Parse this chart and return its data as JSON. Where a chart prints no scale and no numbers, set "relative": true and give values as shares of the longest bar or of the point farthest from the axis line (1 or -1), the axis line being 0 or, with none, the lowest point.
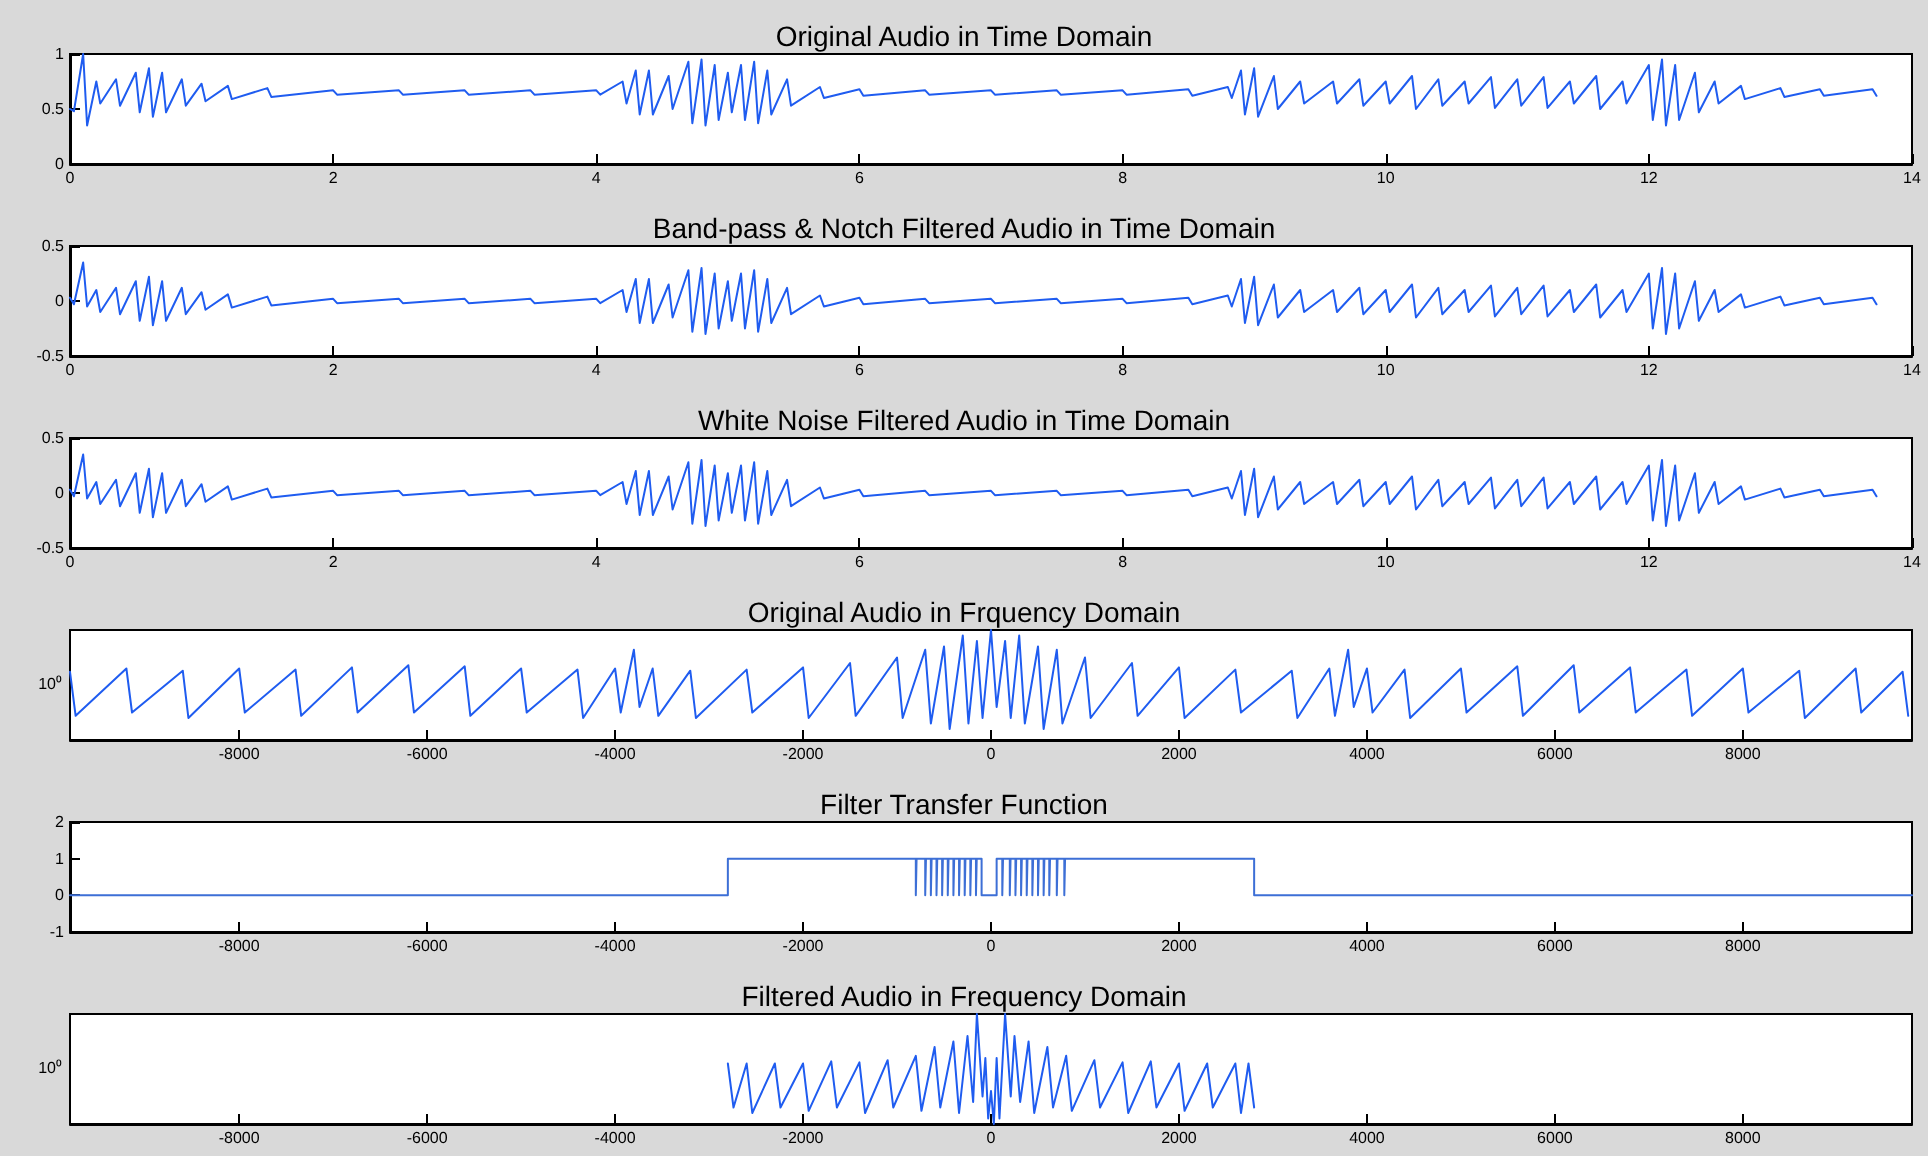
{
  "chart_data": [
    {
      "type": "line",
      "title": "Original Audio in Time Domain",
      "color": "#1f5cf0",
      "xlim": [
        0,
        14
      ],
      "xticks": [
        0,
        2,
        4,
        6,
        8,
        10,
        12,
        14
      ],
      "ylim": [
        0,
        1
      ],
      "yticks": [
        0,
        0.5,
        1
      ],
      "x": [
        0,
        0.03,
        0.1,
        0.13,
        0.2,
        0.23,
        0.35,
        0.38,
        0.5,
        0.53,
        0.6,
        0.63,
        0.7,
        0.73,
        0.85,
        0.88,
        1,
        1.03,
        1.2,
        1.23,
        1.5,
        1.53,
        2,
        2.03,
        2.5,
        2.53,
        3,
        3.03,
        3.5,
        3.53,
        4,
        4.03,
        4.2,
        4.23,
        4.3,
        4.33,
        4.4,
        4.43,
        4.55,
        4.58,
        4.7,
        4.73,
        4.8,
        4.83,
        4.9,
        4.93,
        5,
        5.03,
        5.1,
        5.13,
        5.2,
        5.23,
        5.3,
        5.33,
        5.45,
        5.48,
        5.7,
        5.73,
        6,
        6.03,
        6.5,
        6.53,
        7,
        7.03,
        7.5,
        7.53,
        8,
        8.03,
        8.5,
        8.53,
        8.8,
        8.83,
        8.9,
        8.93,
        9,
        9.03,
        9.15,
        9.18,
        9.35,
        9.38,
        9.6,
        9.63,
        9.8,
        9.83,
        10,
        10.03,
        10.2,
        10.23,
        10.4,
        10.43,
        10.6,
        10.63,
        10.8,
        10.83,
        11,
        11.03,
        11.2,
        11.23,
        11.4,
        11.43,
        11.6,
        11.63,
        11.8,
        11.83,
        12,
        12.03,
        12.1,
        12.13,
        12.2,
        12.23,
        12.35,
        12.38,
        12.5,
        12.53,
        12.7,
        12.73,
        13,
        13.03,
        13.3,
        13.33,
        13.7,
        13.73
      ],
      "values": [
        0.5,
        0.48,
        1,
        0.35,
        0.75,
        0.55,
        0.77,
        0.53,
        0.83,
        0.47,
        0.87,
        0.43,
        0.83,
        0.47,
        0.77,
        0.53,
        0.73,
        0.57,
        0.71,
        0.59,
        0.69,
        0.61,
        0.67,
        0.63,
        0.67,
        0.63,
        0.67,
        0.63,
        0.67,
        0.63,
        0.67,
        0.63,
        0.75,
        0.55,
        0.85,
        0.45,
        0.85,
        0.45,
        0.8,
        0.5,
        0.93,
        0.37,
        0.95,
        0.35,
        0.9,
        0.4,
        0.83,
        0.47,
        0.9,
        0.4,
        0.93,
        0.37,
        0.85,
        0.45,
        0.77,
        0.53,
        0.7,
        0.6,
        0.68,
        0.62,
        0.67,
        0.63,
        0.67,
        0.63,
        0.67,
        0.63,
        0.67,
        0.63,
        0.68,
        0.62,
        0.7,
        0.6,
        0.85,
        0.45,
        0.87,
        0.43,
        0.8,
        0.5,
        0.75,
        0.55,
        0.75,
        0.55,
        0.77,
        0.53,
        0.75,
        0.55,
        0.8,
        0.5,
        0.77,
        0.53,
        0.75,
        0.55,
        0.79,
        0.51,
        0.77,
        0.53,
        0.79,
        0.51,
        0.75,
        0.55,
        0.8,
        0.5,
        0.75,
        0.55,
        0.9,
        0.4,
        0.95,
        0.35,
        0.9,
        0.4,
        0.83,
        0.47,
        0.75,
        0.55,
        0.71,
        0.59,
        0.69,
        0.61,
        0.68,
        0.62,
        0.68,
        0.62
      ]
    },
    {
      "type": "line",
      "title": "Band-pass & Notch Filtered Audio in Time Domain",
      "color": "#1f5cf0",
      "xlim": [
        0,
        14
      ],
      "xticks": [
        0,
        2,
        4,
        6,
        8,
        10,
        12,
        14
      ],
      "ylim": [
        -0.5,
        0.5
      ],
      "yticks": [
        -0.5,
        0,
        0.5
      ],
      "x": [
        0,
        0.03,
        0.1,
        0.13,
        0.2,
        0.23,
        0.35,
        0.38,
        0.5,
        0.53,
        0.6,
        0.63,
        0.7,
        0.73,
        0.85,
        0.88,
        1,
        1.03,
        1.2,
        1.23,
        1.5,
        1.53,
        2,
        2.03,
        2.5,
        2.53,
        3,
        3.03,
        3.5,
        3.53,
        4,
        4.03,
        4.2,
        4.23,
        4.3,
        4.33,
        4.4,
        4.43,
        4.55,
        4.58,
        4.7,
        4.73,
        4.8,
        4.83,
        4.9,
        4.93,
        5,
        5.03,
        5.1,
        5.13,
        5.2,
        5.23,
        5.3,
        5.33,
        5.45,
        5.48,
        5.7,
        5.73,
        6,
        6.03,
        6.5,
        6.53,
        7,
        7.03,
        7.5,
        7.53,
        8,
        8.03,
        8.5,
        8.53,
        8.8,
        8.83,
        8.9,
        8.93,
        9,
        9.03,
        9.15,
        9.18,
        9.35,
        9.38,
        9.6,
        9.63,
        9.8,
        9.83,
        10,
        10.03,
        10.2,
        10.23,
        10.4,
        10.43,
        10.6,
        10.63,
        10.8,
        10.83,
        11,
        11.03,
        11.2,
        11.23,
        11.4,
        11.43,
        11.6,
        11.63,
        11.8,
        11.83,
        12,
        12.03,
        12.1,
        12.13,
        12.2,
        12.23,
        12.35,
        12.38,
        12.5,
        12.53,
        12.7,
        12.73,
        13,
        13.03,
        13.3,
        13.33,
        13.7,
        13.73
      ],
      "values": [
        0.03,
        -0.03,
        0.35,
        -0.05,
        0.1,
        -0.1,
        0.12,
        -0.12,
        0.18,
        -0.18,
        0.22,
        -0.22,
        0.18,
        -0.18,
        0.12,
        -0.12,
        0.08,
        -0.08,
        0.06,
        -0.06,
        0.04,
        -0.04,
        0.02,
        -0.02,
        0.02,
        -0.02,
        0.02,
        -0.02,
        0.02,
        -0.02,
        0.02,
        -0.02,
        0.1,
        -0.1,
        0.2,
        -0.2,
        0.2,
        -0.2,
        0.15,
        -0.15,
        0.28,
        -0.28,
        0.3,
        -0.3,
        0.25,
        -0.25,
        0.18,
        -0.18,
        0.25,
        -0.25,
        0.28,
        -0.28,
        0.2,
        -0.2,
        0.12,
        -0.12,
        0.05,
        -0.05,
        0.03,
        -0.03,
        0.02,
        -0.02,
        0.02,
        -0.02,
        0.02,
        -0.02,
        0.02,
        -0.02,
        0.03,
        -0.03,
        0.05,
        -0.05,
        0.2,
        -0.2,
        0.22,
        -0.22,
        0.15,
        -0.15,
        0.1,
        -0.1,
        0.1,
        -0.1,
        0.12,
        -0.12,
        0.1,
        -0.1,
        0.15,
        -0.15,
        0.12,
        -0.12,
        0.1,
        -0.1,
        0.14,
        -0.14,
        0.12,
        -0.12,
        0.14,
        -0.14,
        0.1,
        -0.1,
        0.15,
        -0.15,
        0.1,
        -0.1,
        0.25,
        -0.25,
        0.3,
        -0.3,
        0.25,
        -0.25,
        0.18,
        -0.18,
        0.1,
        -0.1,
        0.06,
        -0.06,
        0.04,
        -0.04,
        0.03,
        -0.03,
        0.03,
        -0.03
      ]
    },
    {
      "type": "line",
      "title": "White Noise Filtered Audio in Time Domain",
      "color": "#1f5cf0",
      "xlim": [
        0,
        14
      ],
      "xticks": [
        0,
        2,
        4,
        6,
        8,
        10,
        12,
        14
      ],
      "ylim": [
        -0.5,
        0.5
      ],
      "yticks": [
        -0.5,
        0,
        0.5
      ],
      "x": [
        0,
        0.03,
        0.1,
        0.13,
        0.2,
        0.23,
        0.35,
        0.38,
        0.5,
        0.53,
        0.6,
        0.63,
        0.7,
        0.73,
        0.85,
        0.88,
        1,
        1.03,
        1.2,
        1.23,
        1.5,
        1.53,
        2,
        2.03,
        2.5,
        2.53,
        3,
        3.03,
        3.5,
        3.53,
        4,
        4.03,
        4.2,
        4.23,
        4.3,
        4.33,
        4.4,
        4.43,
        4.55,
        4.58,
        4.7,
        4.73,
        4.8,
        4.83,
        4.9,
        4.93,
        5,
        5.03,
        5.1,
        5.13,
        5.2,
        5.23,
        5.3,
        5.33,
        5.45,
        5.48,
        5.7,
        5.73,
        6,
        6.03,
        6.5,
        6.53,
        7,
        7.03,
        7.5,
        7.53,
        8,
        8.03,
        8.5,
        8.53,
        8.8,
        8.83,
        8.9,
        8.93,
        9,
        9.03,
        9.15,
        9.18,
        9.35,
        9.38,
        9.6,
        9.63,
        9.8,
        9.83,
        10,
        10.03,
        10.2,
        10.23,
        10.4,
        10.43,
        10.6,
        10.63,
        10.8,
        10.83,
        11,
        11.03,
        11.2,
        11.23,
        11.4,
        11.43,
        11.6,
        11.63,
        11.8,
        11.83,
        12,
        12.03,
        12.1,
        12.13,
        12.2,
        12.23,
        12.35,
        12.38,
        12.5,
        12.53,
        12.7,
        12.73,
        13,
        13.03,
        13.3,
        13.33,
        13.7,
        13.73
      ],
      "values": [
        0.03,
        -0.03,
        0.35,
        -0.05,
        0.1,
        -0.1,
        0.12,
        -0.12,
        0.18,
        -0.18,
        0.22,
        -0.22,
        0.18,
        -0.18,
        0.12,
        -0.12,
        0.08,
        -0.08,
        0.06,
        -0.06,
        0.04,
        -0.04,
        0.02,
        -0.02,
        0.02,
        -0.02,
        0.02,
        -0.02,
        0.02,
        -0.02,
        0.02,
        -0.02,
        0.1,
        -0.1,
        0.2,
        -0.2,
        0.2,
        -0.2,
        0.15,
        -0.15,
        0.28,
        -0.28,
        0.3,
        -0.3,
        0.25,
        -0.25,
        0.18,
        -0.18,
        0.25,
        -0.25,
        0.28,
        -0.28,
        0.2,
        -0.2,
        0.12,
        -0.12,
        0.05,
        -0.05,
        0.03,
        -0.03,
        0.02,
        -0.02,
        0.02,
        -0.02,
        0.02,
        -0.02,
        0.02,
        -0.02,
        0.03,
        -0.03,
        0.05,
        -0.05,
        0.2,
        -0.2,
        0.22,
        -0.22,
        0.15,
        -0.15,
        0.1,
        -0.1,
        0.1,
        -0.1,
        0.12,
        -0.12,
        0.1,
        -0.1,
        0.15,
        -0.15,
        0.12,
        -0.12,
        0.1,
        -0.1,
        0.14,
        -0.14,
        0.12,
        -0.12,
        0.14,
        -0.14,
        0.1,
        -0.1,
        0.15,
        -0.15,
        0.1,
        -0.1,
        0.25,
        -0.25,
        0.3,
        -0.3,
        0.25,
        -0.25,
        0.18,
        -0.18,
        0.1,
        -0.1,
        0.06,
        -0.06,
        0.04,
        -0.04,
        0.03,
        -0.03,
        0.03,
        -0.03
      ]
    },
    {
      "type": "line",
      "title": "Original Audio in Frquency Domain",
      "color": "#1f5cf0",
      "relative": true,
      "annotations": [
        "10⁰"
      ],
      "xlim": [
        -9800,
        9800
      ],
      "xticks": [
        -8000,
        -6000,
        -4000,
        -2000,
        0,
        2000,
        4000,
        6000,
        8000
      ],
      "x": [
        -9800,
        -9740,
        -9200,
        -9140,
        -8600,
        -8540,
        -8000,
        -7940,
        -7400,
        -7340,
        -6800,
        -6740,
        -6200,
        -6140,
        -5600,
        -5540,
        -5000,
        -4940,
        -4400,
        -4340,
        -4000,
        -3940,
        -3800,
        -3740,
        -3600,
        -3540,
        -3200,
        -3140,
        -2600,
        -2540,
        -2000,
        -1940,
        -1500,
        -1440,
        -1000,
        -940,
        -700,
        -640,
        -500,
        -440,
        -300,
        -240,
        -150,
        -90,
        0,
        60,
        150,
        210,
        300,
        360,
        500,
        560,
        700,
        760,
        1000,
        1060,
        1500,
        1560,
        2000,
        2060,
        2600,
        2660,
        3200,
        3260,
        3600,
        3660,
        3800,
        3860,
        4000,
        4060,
        4400,
        4460,
        5000,
        5060,
        5600,
        5660,
        6200,
        6260,
        6800,
        6860,
        7400,
        7460,
        8000,
        8060,
        8600,
        8660,
        9200,
        9260,
        9700,
        9760
      ],
      "values": [
        0.62,
        0.22,
        0.65,
        0.25,
        0.63,
        0.2,
        0.65,
        0.25,
        0.64,
        0.22,
        0.66,
        0.25,
        0.68,
        0.25,
        0.67,
        0.22,
        0.65,
        0.25,
        0.64,
        0.2,
        0.65,
        0.25,
        0.82,
        0.3,
        0.65,
        0.22,
        0.63,
        0.2,
        0.64,
        0.25,
        0.66,
        0.2,
        0.7,
        0.22,
        0.75,
        0.2,
        0.82,
        0.15,
        0.85,
        0.1,
        0.95,
        0.15,
        0.9,
        0.2,
        1,
        0.3,
        0.9,
        0.2,
        0.95,
        0.15,
        0.85,
        0.1,
        0.82,
        0.15,
        0.75,
        0.2,
        0.7,
        0.22,
        0.66,
        0.2,
        0.64,
        0.25,
        0.63,
        0.2,
        0.65,
        0.22,
        0.82,
        0.3,
        0.65,
        0.25,
        0.64,
        0.2,
        0.65,
        0.25,
        0.67,
        0.22,
        0.68,
        0.25,
        0.66,
        0.25,
        0.64,
        0.22,
        0.65,
        0.25,
        0.63,
        0.2,
        0.65,
        0.25,
        0.62,
        0.22
      ]
    },
    {
      "type": "line",
      "title": "Filter Transfer Function",
      "color": "#3d6fd6",
      "xlim": [
        -9800,
        9800
      ],
      "xticks": [
        -8000,
        -6000,
        -4000,
        -2000,
        0,
        2000,
        4000,
        6000,
        8000
      ],
      "ylim": [
        -1,
        2
      ],
      "yticks": [
        -1,
        0,
        1,
        2
      ],
      "x": [
        -9800,
        -2800,
        -2800,
        -800,
        -800,
        -792,
        -792,
        -700,
        -700,
        -692,
        -692,
        -640,
        -640,
        -632,
        -632,
        -580,
        -580,
        -572,
        -572,
        -520,
        -520,
        -512,
        -512,
        -460,
        -460,
        -452,
        -452,
        -400,
        -400,
        -392,
        -392,
        -340,
        -340,
        -332,
        -332,
        -280,
        -280,
        -272,
        -272,
        -220,
        -220,
        -212,
        -212,
        -160,
        -160,
        -152,
        -152,
        -100,
        -100,
        60,
        60,
        120,
        120,
        128,
        128,
        200,
        200,
        208,
        208,
        260,
        260,
        268,
        268,
        320,
        320,
        328,
        328,
        380,
        380,
        388,
        388,
        440,
        440,
        448,
        448,
        500,
        500,
        508,
        508,
        560,
        560,
        568,
        568,
        620,
        620,
        628,
        628,
        700,
        700,
        708,
        708,
        780,
        780,
        788,
        788,
        2800,
        2800,
        9800
      ],
      "values": [
        0,
        0,
        1,
        1,
        0,
        0,
        1,
        1,
        0,
        0,
        1,
        1,
        0,
        0,
        1,
        1,
        0,
        0,
        1,
        1,
        0,
        0,
        1,
        1,
        0,
        0,
        1,
        1,
        0,
        0,
        1,
        1,
        0,
        0,
        1,
        1,
        0,
        0,
        1,
        1,
        0,
        0,
        1,
        1,
        0,
        0,
        1,
        1,
        0,
        0,
        1,
        1,
        0,
        0,
        1,
        1,
        0,
        0,
        1,
        1,
        0,
        0,
        1,
        1,
        0,
        0,
        1,
        1,
        0,
        0,
        1,
        1,
        0,
        0,
        1,
        1,
        0,
        0,
        1,
        1,
        0,
        0,
        1,
        1,
        0,
        0,
        1,
        1,
        0,
        0,
        1,
        1,
        0,
        0,
        1,
        1,
        0,
        0
      ]
    },
    {
      "type": "line",
      "title": "Filtered Audio in Frequency Domain",
      "color": "#1f5cf0",
      "relative": true,
      "annotations": [
        "10⁰"
      ],
      "xlim": [
        -9800,
        9800
      ],
      "xticks": [
        -8000,
        -6000,
        -4000,
        -2000,
        0,
        2000,
        4000,
        6000,
        8000
      ],
      "x": [
        -2800,
        -2740,
        -2600,
        -2540,
        -2300,
        -2240,
        -2000,
        -1940,
        -1700,
        -1640,
        -1400,
        -1340,
        -1100,
        -1040,
        -800,
        -740,
        -600,
        -540,
        -400,
        -340,
        -250,
        -190,
        -150,
        -90,
        -60,
        -30,
        0,
        30,
        60,
        90,
        150,
        210,
        250,
        310,
        400,
        460,
        600,
        660,
        800,
        860,
        1100,
        1160,
        1400,
        1460,
        1700,
        1760,
        2000,
        2060,
        2300,
        2360,
        2600,
        2660,
        2740,
        2800
      ],
      "values": [
        0.55,
        0.15,
        0.55,
        0.1,
        0.55,
        0.15,
        0.55,
        0.12,
        0.57,
        0.15,
        0.56,
        0.1,
        0.58,
        0.15,
        0.62,
        0.12,
        0.7,
        0.15,
        0.75,
        0.1,
        0.8,
        0.2,
        1,
        0.25,
        0.6,
        0.05,
        0.3,
        0,
        0.6,
        0.05,
        1,
        0.25,
        0.8,
        0.2,
        0.75,
        0.1,
        0.7,
        0.15,
        0.62,
        0.12,
        0.58,
        0.15,
        0.56,
        0.1,
        0.57,
        0.15,
        0.55,
        0.12,
        0.55,
        0.15,
        0.55,
        0.1,
        0.55,
        0.15
      ]
    }
  ]
}
